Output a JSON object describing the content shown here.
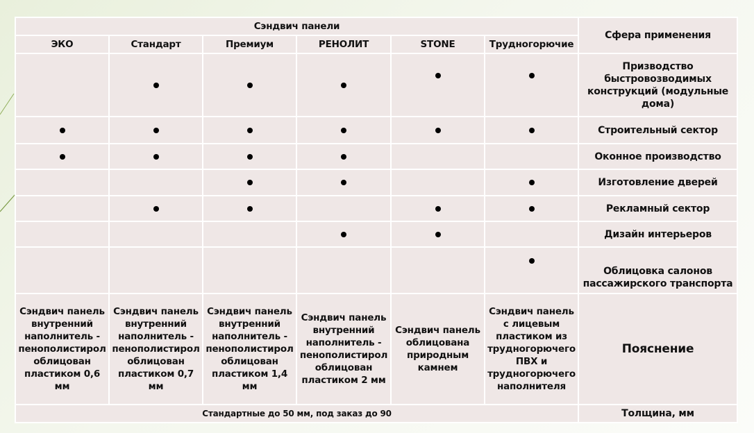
{
  "title": "Сэндвич панели",
  "sphere_header": "Сфера применения",
  "columns": [
    "ЭКО",
    "Стандарт",
    "Премиум",
    "РЕНОЛИТ",
    "STONE",
    "Трудногорючие"
  ],
  "rows": [
    {
      "label": "Призводство быстровозводимых конструкций (модульные дома)",
      "marks": [
        false,
        true,
        true,
        true,
        true,
        true
      ]
    },
    {
      "label": "Строительный сектор",
      "marks": [
        true,
        true,
        true,
        true,
        true,
        true
      ]
    },
    {
      "label": "Оконное производство",
      "marks": [
        true,
        true,
        true,
        true,
        false,
        false
      ]
    },
    {
      "label": "Изготовление дверей",
      "marks": [
        false,
        false,
        true,
        true,
        false,
        true
      ]
    },
    {
      "label": "Рекламный сектор",
      "marks": [
        false,
        true,
        true,
        false,
        true,
        true
      ]
    },
    {
      "label": "Дизайн интерьеров",
      "marks": [
        false,
        false,
        false,
        true,
        true,
        false
      ]
    },
    {
      "label": "Облицовка салонов пассажирского транспорта",
      "marks": [
        false,
        false,
        false,
        false,
        false,
        true
      ]
    }
  ],
  "explanations": [
    "Сэндвич панель внутренний наполнитель - пенополистирол облицован пластиком 0,6 мм",
    "Сэндвич панель внутренний наполнитель - пенополистирол облицован пластиком 0,7 мм",
    "Сэндвич панель внутренний наполнитель - пенополистирол облицован пластиком 1,4 мм",
    "Сэндвич панель внутренний наполнитель - пенополистирол облицован пластиком 2 мм",
    "Сэндвич панель облицована природным камнем",
    "Сэндвич панель с лицевым пластиком  из трудногорючего ПВХ и трудногорючего наполнителя"
  ],
  "explanation_label": "Пояснение",
  "thickness_value": "Стандартные до 50 мм,  под заказ до 90",
  "thickness_label": "Толщина, мм",
  "colors": {
    "cell": "#efe7e6",
    "border": "#ffffff",
    "background": "#eef3e4"
  }
}
